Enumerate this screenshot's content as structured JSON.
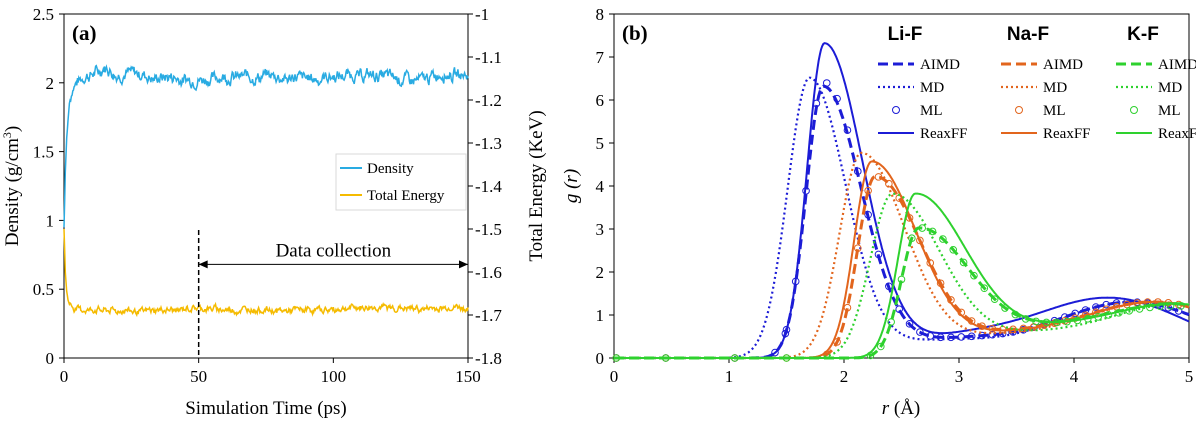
{
  "chart_data": [
    {
      "panel": "(a)",
      "type": "line",
      "xlabel": "Simulation Time (ps)",
      "ylabel_left": "Density (g/cm",
      "ylabel_left_sup": "3",
      "ylabel_left_close": ")",
      "ylabel_right": "Total Energy (KeV)",
      "xlim": [
        0,
        150
      ],
      "ylim_left": [
        0,
        2.5
      ],
      "ylim_right": [
        -1.8,
        -1.0
      ],
      "xticks": [
        "0",
        "50",
        "100",
        "150"
      ],
      "yticks_left": [
        "0",
        "0.5",
        "1",
        "1.5",
        "2",
        "2.5"
      ],
      "yticks_right": [
        "-1.8",
        "-1.7",
        "-1.6",
        "-1.5",
        "-1.4",
        "-1.3",
        "-1.2",
        "-1.1",
        "-1"
      ],
      "series": [
        {
          "name": "Density",
          "axis": "left",
          "color": "#29abe2",
          "x": [
            0,
            0.5,
            1,
            2,
            3,
            5,
            8,
            12,
            15,
            20,
            30,
            40,
            50,
            60,
            70,
            80,
            90,
            100,
            110,
            120,
            130,
            140,
            150
          ],
          "y": [
            0.95,
            1.35,
            1.6,
            1.85,
            1.95,
            2.02,
            2.05,
            2.08,
            2.1,
            2.07,
            2.05,
            2.04,
            2.03,
            2.05,
            2.06,
            2.05,
            2.04,
            2.05,
            2.04,
            2.05,
            2.04,
            2.06,
            2.08
          ]
        },
        {
          "name": "Total Energy",
          "axis": "right",
          "color": "#f5bb00",
          "x": [
            0,
            0.5,
            1,
            1.5,
            2,
            3,
            4,
            6,
            10,
            20,
            40,
            60,
            80,
            100,
            120,
            140,
            150
          ],
          "y": [
            -1.5,
            -1.6,
            -1.645,
            -1.665,
            -1.675,
            -1.682,
            -1.685,
            -1.686,
            -1.686,
            -1.687,
            -1.686,
            -1.687,
            -1.686,
            -1.687,
            -1.686,
            -1.687,
            -1.686
          ]
        }
      ],
      "annotation": {
        "text": "Data collection",
        "x_start": 50,
        "x_end": 150,
        "y": 0.68
      },
      "vline_x": 50,
      "legend": {
        "placement": "right",
        "entries": [
          "Density",
          "Total Energy"
        ]
      }
    },
    {
      "panel": "(b)",
      "type": "line",
      "xlabel_var": "r",
      "xlabel_unit": " (Å)",
      "ylabel": "g (r)",
      "xlim": [
        0,
        5
      ],
      "ylim": [
        0,
        8
      ],
      "xticks": [
        "0",
        "1",
        "2",
        "3",
        "4",
        "5"
      ],
      "yticks": [
        "0",
        "1",
        "2",
        "3",
        "4",
        "5",
        "6",
        "7",
        "8"
      ],
      "groups": [
        "Li-F",
        "Na-F",
        "K-F"
      ],
      "methods": [
        "AIMD",
        "MD",
        "ML",
        "ReaxFF"
      ],
      "group_colors": [
        "#1c1cd6",
        "#e2651d",
        "#2ed12e"
      ],
      "series": [
        {
          "group": "Li-F",
          "method": "ReaxFF",
          "peak": {
            "r": 1.83,
            "g": 7.3
          },
          "tail": {
            "r": 4.3,
            "g": 1.4
          }
        },
        {
          "group": "Li-F",
          "method": "AIMD",
          "peak": {
            "r": 1.82,
            "g": 6.3
          },
          "tail": {
            "r": 4.5,
            "g": 1.3
          }
        },
        {
          "group": "Li-F",
          "method": "MD",
          "peak": {
            "r": 1.7,
            "g": 6.5
          },
          "tail": {
            "r": 4.5,
            "g": 1.3
          }
        },
        {
          "group": "Li-F",
          "method": "ML",
          "peak": {
            "r": 1.82,
            "g": 6.4
          },
          "tail": {
            "r": 4.5,
            "g": 1.3
          }
        },
        {
          "group": "Na-F",
          "method": "ReaxFF",
          "peak": {
            "r": 2.24,
            "g": 4.55
          },
          "tail": {
            "r": 4.7,
            "g": 1.3
          }
        },
        {
          "group": "Na-F",
          "method": "AIMD",
          "peak": {
            "r": 2.27,
            "g": 4.2
          },
          "tail": {
            "r": 4.7,
            "g": 1.3
          }
        },
        {
          "group": "Na-F",
          "method": "MD",
          "peak": {
            "r": 2.15,
            "g": 4.75
          },
          "tail": {
            "r": 4.7,
            "g": 1.3
          }
        },
        {
          "group": "Na-F",
          "method": "ML",
          "peak": {
            "r": 2.27,
            "g": 4.2
          },
          "tail": {
            "r": 4.7,
            "g": 1.3
          }
        },
        {
          "group": "K-F",
          "method": "ReaxFF",
          "peak": {
            "r": 2.62,
            "g": 3.8
          },
          "tail": {
            "r": 4.9,
            "g": 1.25
          }
        },
        {
          "group": "K-F",
          "method": "AIMD",
          "peak": {
            "r": 2.65,
            "g": 3.0
          },
          "tail": {
            "r": 4.9,
            "g": 1.25
          }
        },
        {
          "group": "K-F",
          "method": "MD",
          "peak": {
            "r": 2.42,
            "g": 3.8
          },
          "tail": {
            "r": 4.9,
            "g": 1.25
          }
        },
        {
          "group": "K-F",
          "method": "ML",
          "peak": {
            "r": 2.65,
            "g": 3.0
          },
          "tail": {
            "r": 4.9,
            "g": 1.2
          }
        }
      ],
      "legend": {
        "placement": "top-right"
      }
    }
  ]
}
